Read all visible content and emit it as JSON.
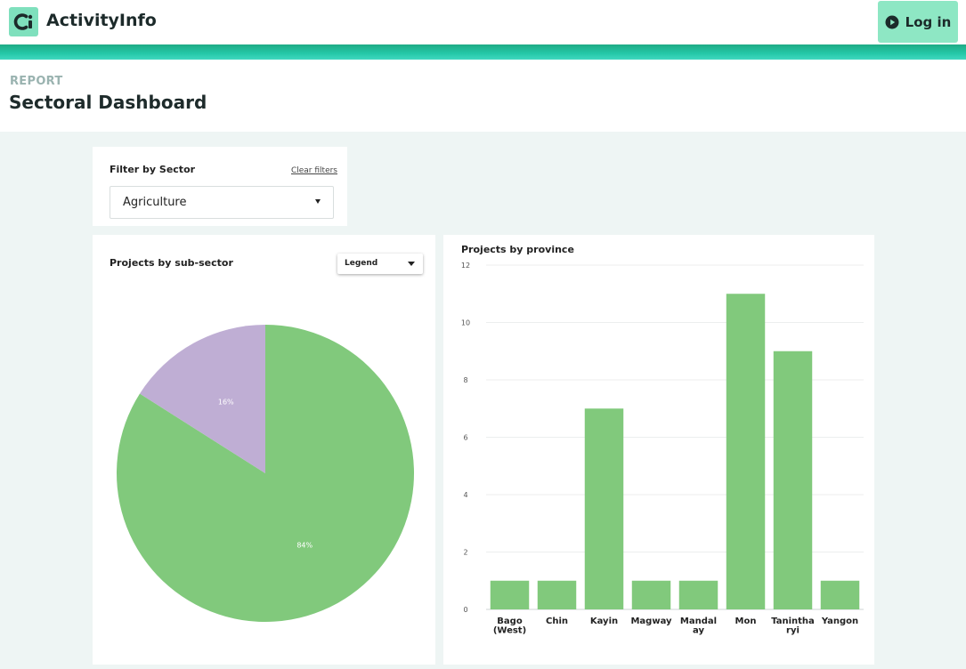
{
  "app": {
    "name": "ActivityInfo",
    "login_label": "Log in",
    "colors": {
      "brand": "#7fe0bd",
      "accent_band": "#24c8a8",
      "login_bg": "#8ee7c4"
    }
  },
  "header": {
    "kind_label": "REPORT",
    "title": "Sectoral Dashboard"
  },
  "filter": {
    "title": "Filter by Sector",
    "clear_label": "Clear filters",
    "selected": "Agriculture"
  },
  "pie_panel": {
    "title": "Projects by sub-sector",
    "legend_label": "Legend"
  },
  "bar_panel": {
    "title": "Projects by province"
  },
  "chart_data": [
    {
      "type": "pie",
      "title": "Projects by sub-sector",
      "slices": [
        {
          "label": "84%",
          "value": 84,
          "color": "#81c97c"
        },
        {
          "label": "16%",
          "value": 16,
          "color": "#bfaed4"
        }
      ]
    },
    {
      "type": "bar",
      "title": "Projects by province",
      "categories": [
        "Bago (West)",
        "Chin",
        "Kayin",
        "Magway",
        "Mandalay",
        "Mon",
        "Tanintharyi",
        "Yangon"
      ],
      "category_label_lines": [
        [
          "Bago",
          "(West)"
        ],
        [
          "Chin"
        ],
        [
          "Kayin"
        ],
        [
          "Magway"
        ],
        [
          "Mandal",
          "ay"
        ],
        [
          "Mon"
        ],
        [
          "Tanintha",
          "ryi"
        ],
        [
          "Yangon"
        ]
      ],
      "values": [
        1,
        1,
        7,
        1,
        1,
        11,
        9,
        1
      ],
      "ylim": [
        0,
        12
      ],
      "yticks": [
        0,
        2,
        4,
        6,
        8,
        10,
        12
      ],
      "grid": true,
      "bar_color": "#81c97c"
    }
  ]
}
